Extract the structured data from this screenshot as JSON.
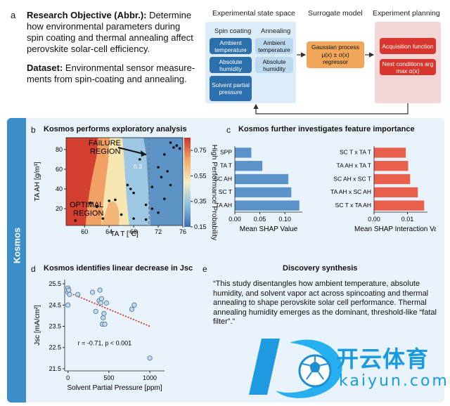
{
  "panel_a": {
    "label": "a",
    "objective_heading": "Research Objective (Abbr.):",
    "objective_text": "Determine how environmental parameters during spin coating and thermal annealing affect perovskite solar-cell efficiency.",
    "dataset_heading": "Dataset:",
    "dataset_text": "Environmental sensor measure-ments from spin-coating and annealing.",
    "pipeline": {
      "state_space_title": "Experimental state space",
      "surrogate_title": "Surrogate model",
      "planning_title": "Experiment planning",
      "spin_coating_label": "Spin coating",
      "annealing_label": "Annealing",
      "spin_items": [
        "Ambient temperature",
        "Absolute humidity",
        "Solvent partial pressure"
      ],
      "anneal_items": [
        "Ambient temperature",
        "Absolute humidity"
      ],
      "surrogate_lines": [
        "Gaussian process",
        "μ(x) ± σ(x)",
        "regressor"
      ],
      "planning_items": [
        "Acquisition function",
        "Next conditions arg max α(x)"
      ]
    }
  },
  "side_label": "Kosmos",
  "panel_b": {
    "label": "b",
    "title": "Kosmos performs exploratory analysis",
    "failure_label": "FAILURE REGION",
    "optimal_label": "OPTIMAL REGION",
    "contour_label": "0.3",
    "colorbar_title": "High Performance Probability",
    "colorbar_ticks": [
      "0.75",
      "0.55",
      "0.35",
      "0.15"
    ]
  },
  "panel_c": {
    "label": "c",
    "title": "Kosmos further investigates feature importance"
  },
  "panel_d": {
    "label": "d",
    "title": "Kosmos identifies linear decrease in Jsc",
    "annotation": "r = -0.71, p < 0.001"
  },
  "panel_e": {
    "label": "e",
    "title": "Discovery synthesis",
    "text": "“This study disentangles how ambient temperature, absolute humidity, and solvent vapor act across spincoating and thermal annealing to shape perovskite solar cell performance. Thermal annealing humidity emerges as the dominant, threshold-like “fatal filter”.”"
  },
  "watermark": {
    "brand_cn": "开云体育",
    "brand_url": "kaiyun.com"
  },
  "colors": {
    "blue_button": "#2c6fad",
    "light_button": "#bcd9ef",
    "red_button": "#d8362f",
    "surrogate": "#f2a65a",
    "shap_bar": "#5b93c9",
    "interaction_bar": "#e8604c",
    "kosmos_band": "#3c8ec9"
  },
  "chart_data": [
    {
      "type": "heatmap",
      "xlabel": "TA T [°C]",
      "ylabel": "TA AH [g/m³]",
      "xticks": [
        60,
        64,
        68,
        72,
        76
      ],
      "yticks": [
        20,
        40,
        60,
        80
      ],
      "xlim": [
        57,
        76
      ],
      "ylim": [
        3,
        92
      ],
      "threshold_x": 70.5,
      "points": [
        [
          58.5,
          8
        ],
        [
          61,
          26
        ],
        [
          62,
          22
        ],
        [
          64,
          28
        ],
        [
          65,
          29
        ],
        [
          66,
          14
        ],
        [
          67,
          44
        ],
        [
          67.5,
          40
        ],
        [
          68,
          36
        ],
        [
          69,
          70
        ],
        [
          70,
          24
        ],
        [
          71,
          42
        ],
        [
          71,
          20
        ],
        [
          72,
          62
        ],
        [
          72.5,
          52
        ],
        [
          73,
          75
        ],
        [
          73,
          30
        ],
        [
          73.5,
          58
        ],
        [
          74,
          44
        ],
        [
          74.5,
          82
        ],
        [
          75,
          84
        ],
        [
          74,
          87
        ],
        [
          75.5,
          81
        ],
        [
          72,
          16
        ],
        [
          70,
          9
        ],
        [
          68,
          10
        ],
        [
          63,
          10
        ]
      ],
      "colorbar": {
        "min": 0.15,
        "max": 0.85,
        "ticks": [
          0.75,
          0.55,
          0.35,
          0.15
        ]
      }
    },
    {
      "type": "bar",
      "orientation": "horizontal",
      "categories": [
        "SPP",
        "TA T",
        "SC AH",
        "SC T",
        "TA AH"
      ],
      "values": [
        0.033,
        0.055,
        0.107,
        0.113,
        0.129
      ],
      "xlabel": "Mean SHAP Value",
      "xticks": [
        0.0,
        0.05,
        0.1
      ],
      "xlim": [
        0,
        0.135
      ]
    },
    {
      "type": "bar",
      "orientation": "horizontal",
      "categories": [
        "SC T x TA T",
        "TA AH x TA T",
        "SC AH x SC T",
        "TA AH x SC AH",
        "SC T x TA AH"
      ],
      "values": [
        0.0095,
        0.0102,
        0.0108,
        0.0131,
        0.015
      ],
      "xlabel": "Mean SHAP Interaction Value",
      "xticks": [
        0.0,
        0.01
      ],
      "xlim": [
        0,
        0.016
      ]
    },
    {
      "type": "scatter",
      "xlabel": "Solvent Partial Pressure [ppm]",
      "ylabel": "Jsc [mA/cm²]",
      "xticks": [
        0,
        500,
        1000
      ],
      "yticks": [
        21.5,
        22.5,
        23.5,
        24.5,
        25.5
      ],
      "xlim": [
        -40,
        1180
      ],
      "ylim": [
        21.4,
        25.7
      ],
      "x": [
        0,
        0,
        0,
        10,
        20,
        120,
        300,
        340,
        380,
        390,
        400,
        410,
        420,
        430,
        440,
        450,
        470,
        780,
        810,
        1000
      ],
      "y": [
        25.3,
        25.1,
        24.5,
        25.2,
        25.0,
        25.0,
        25.1,
        24.2,
        24.7,
        25.2,
        24.6,
        24.8,
        23.6,
        23.9,
        24.1,
        23.6,
        24.6,
        24.3,
        24.5,
        22.0
      ],
      "trend": [
        [
          0,
          25.1
        ],
        [
          1000,
          23.5
        ]
      ]
    }
  ]
}
